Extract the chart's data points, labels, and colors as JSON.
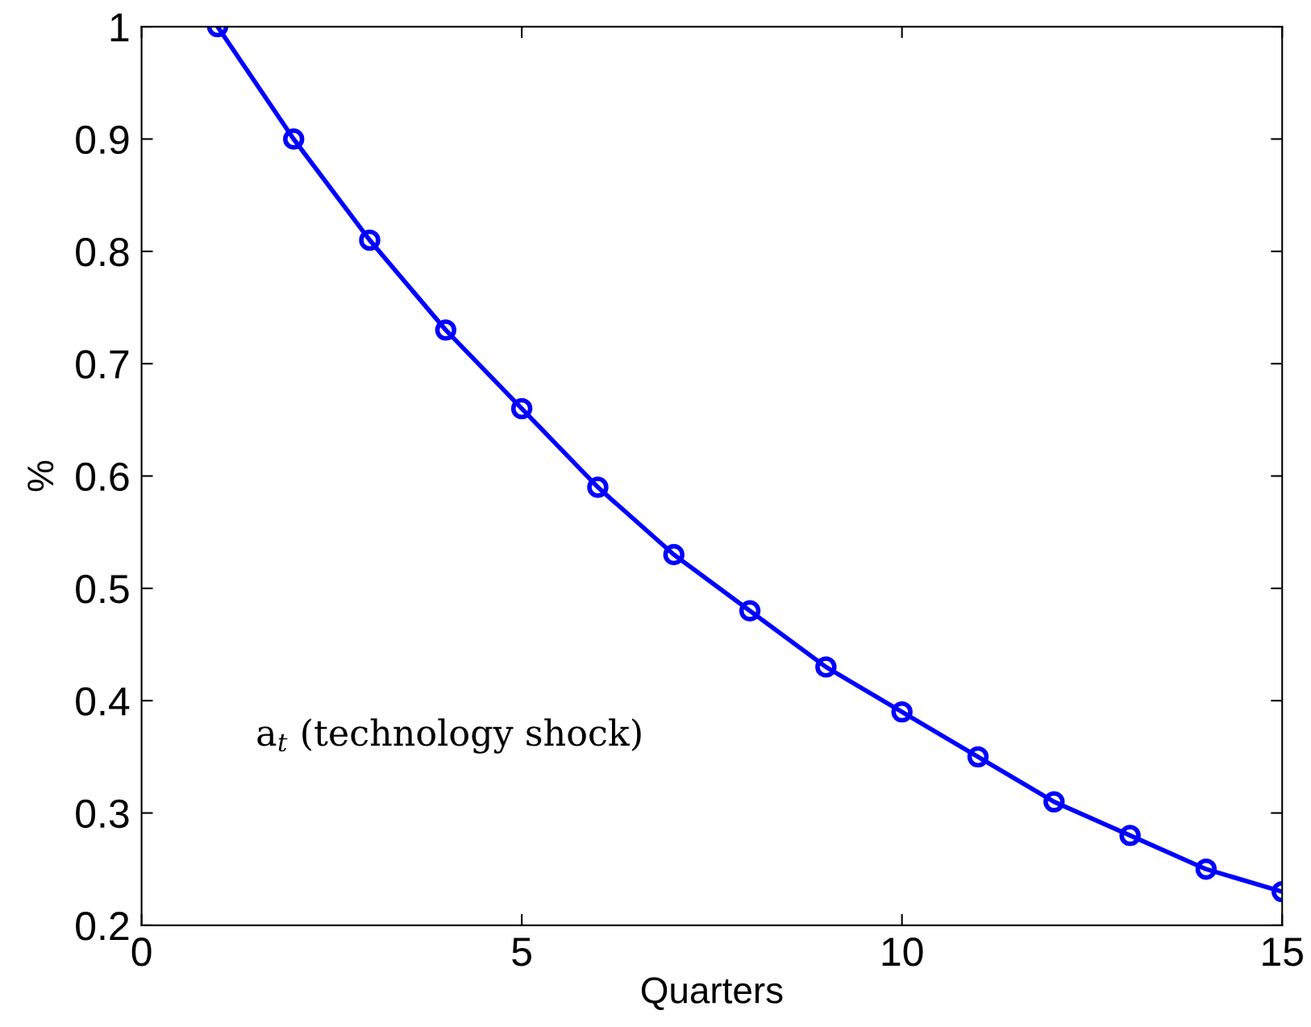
{
  "chart_data": {
    "type": "line",
    "xlabel": "Quarters",
    "ylabel": "%",
    "x": [
      1,
      2,
      3,
      4,
      5,
      6,
      7,
      8,
      9,
      10,
      11,
      12,
      13,
      14,
      15
    ],
    "series": [
      {
        "color": "#0000ff",
        "values": [
          1,
          0.9,
          0.81,
          0.73,
          0.66,
          0.59,
          0.53,
          0.48,
          0.43,
          0.39,
          0.35,
          0.31,
          0.28,
          0.25,
          0.23
        ]
      }
    ],
    "xlim": [
      0,
      15
    ],
    "ylim": [
      0.2,
      1
    ],
    "xticks": [
      0,
      5,
      10,
      15
    ],
    "yticks": [
      0.2,
      0.3,
      0.4,
      0.5,
      0.6,
      0.7,
      0.8,
      0.9,
      1
    ],
    "annotations": [
      "a$_{t}$ (technology shock)"
    ],
    "marker": "circle",
    "line_style": "solid",
    "grid": false,
    "legend": false
  }
}
